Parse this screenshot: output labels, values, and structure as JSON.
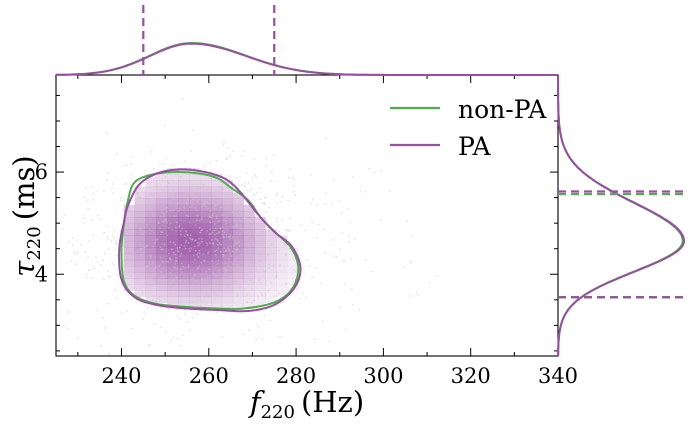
{
  "chart_data": {
    "type": "scatter",
    "subtype": "corner-plot: 2D density with 90% credible contours and marginal KDEs",
    "xlabel": {
      "main": "f",
      "sub": "220",
      "unit": "(Hz)"
    },
    "ylabel": {
      "main": "τ",
      "sub": "220",
      "unit": "(ms)"
    },
    "xlim": [
      225,
      340
    ],
    "ylim": [
      2.4,
      7.9
    ],
    "xticks": [
      240,
      260,
      280,
      300,
      320,
      340
    ],
    "yticks": [
      4,
      6
    ],
    "grid": false,
    "legend": {
      "placement": "top-right",
      "entries": [
        "non-PA",
        "PA"
      ]
    },
    "series": [
      {
        "name": "non-PA",
        "color": "#4daf4a",
        "contour_90": [
          [
            241.5,
            5.45
          ],
          [
            243,
            5.8
          ],
          [
            247,
            5.95
          ],
          [
            252,
            6.0
          ],
          [
            258,
            5.97
          ],
          [
            262,
            5.88
          ],
          [
            265,
            5.7
          ],
          [
            269,
            5.45
          ],
          [
            272,
            5.1
          ],
          [
            275.5,
            4.8
          ],
          [
            279,
            4.5
          ],
          [
            280.5,
            4.1
          ],
          [
            279,
            3.7
          ],
          [
            275,
            3.45
          ],
          [
            268,
            3.33
          ],
          [
            262,
            3.33
          ],
          [
            255,
            3.36
          ],
          [
            248,
            3.42
          ],
          [
            243,
            3.58
          ],
          [
            240.5,
            3.88
          ],
          [
            240,
            4.45
          ],
          [
            240.5,
            4.95
          ]
        ],
        "x_marginal_bounds": [
          245,
          275
        ],
        "y_marginal_bounds": [
          3.55,
          5.57
        ]
      },
      {
        "name": "PA",
        "color": "#984ea3",
        "contour_90": [
          [
            241.5,
            5.35
          ],
          [
            244,
            5.75
          ],
          [
            248,
            5.97
          ],
          [
            253,
            6.05
          ],
          [
            258,
            6.02
          ],
          [
            263,
            5.9
          ],
          [
            266,
            5.72
          ],
          [
            269,
            5.42
          ],
          [
            271.5,
            5.15
          ],
          [
            275,
            4.83
          ],
          [
            279,
            4.55
          ],
          [
            281,
            4.12
          ],
          [
            279.5,
            3.72
          ],
          [
            275,
            3.4
          ],
          [
            269,
            3.28
          ],
          [
            262,
            3.3
          ],
          [
            255,
            3.33
          ],
          [
            248,
            3.4
          ],
          [
            243,
            3.55
          ],
          [
            240,
            3.9
          ],
          [
            239.5,
            4.5
          ],
          [
            240.5,
            5.0
          ]
        ],
        "x_marginal_bounds": [
          245,
          275
        ],
        "y_marginal_bounds": [
          3.55,
          5.62
        ]
      }
    ],
    "density_peak": {
      "x": 256,
      "y": 4.65
    },
    "density_color": "#984ea3",
    "samples_color": "#c8c8c8"
  }
}
